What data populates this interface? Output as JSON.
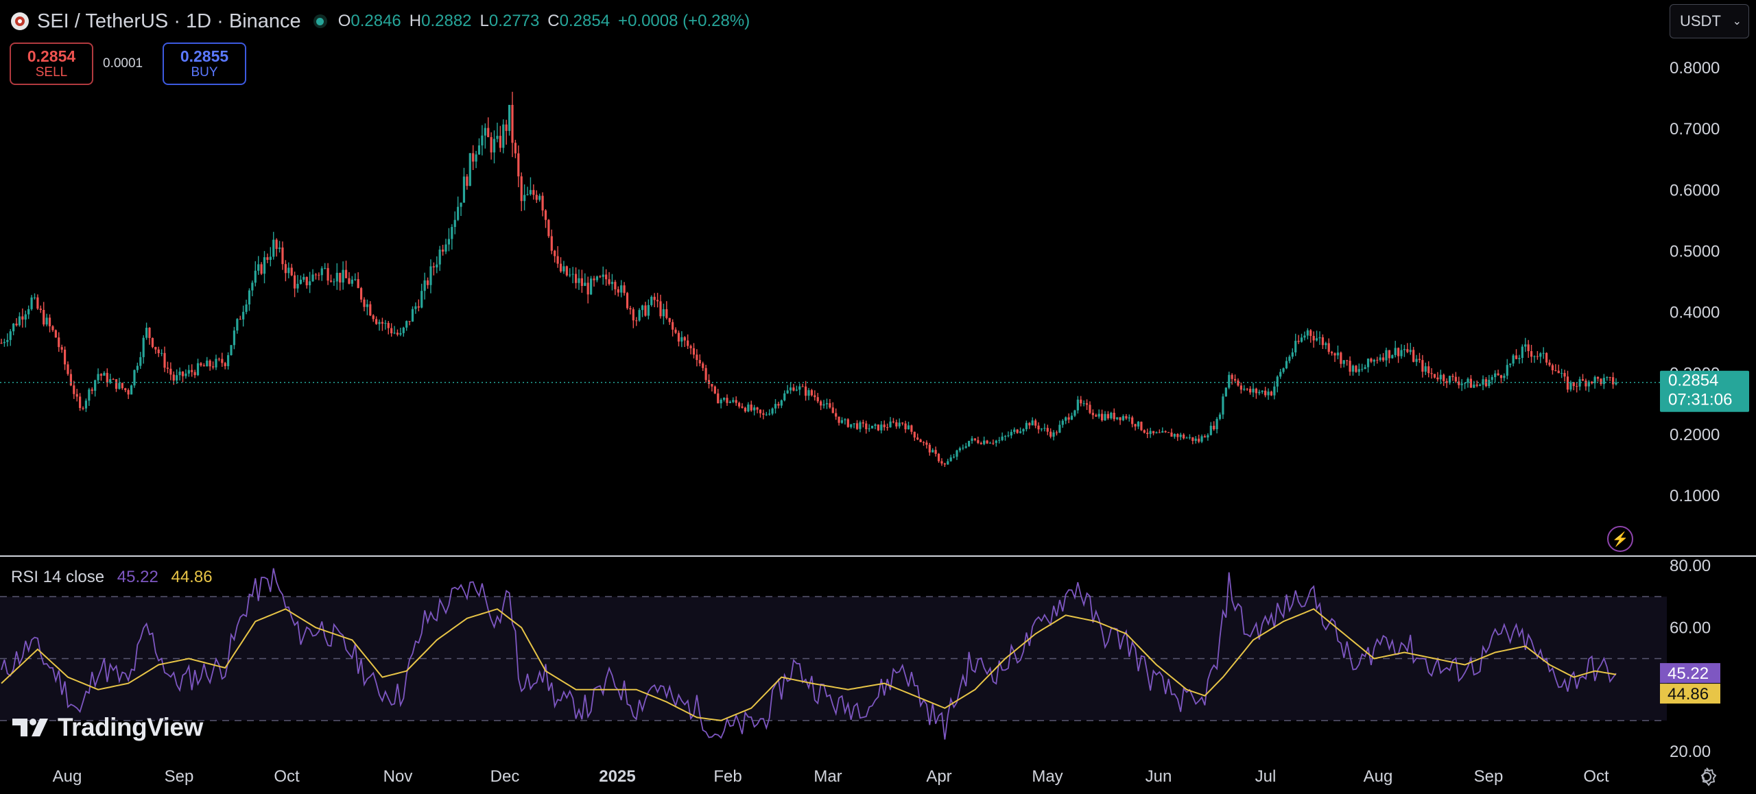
{
  "header": {
    "symbol_title": "SEI / TetherUS · 1D · Binance",
    "ohlc": {
      "o_label": "O",
      "o": "0.2846",
      "h_label": "H",
      "h": "0.2882",
      "l_label": "L",
      "l": "0.2773",
      "c_label": "C",
      "c": "0.2854"
    },
    "change": "+0.0008 (+0.28%)"
  },
  "trade": {
    "sell_price": "0.2854",
    "sell_label": "SELL",
    "spread": "0.0001",
    "buy_price": "0.2855",
    "buy_label": "BUY"
  },
  "currency_select": {
    "value": "USDT"
  },
  "price_badge": {
    "price": "0.2854",
    "countdown": "07:31:06"
  },
  "rsi": {
    "label": "RSI 14 close",
    "rsi_value": "45.22",
    "ma_value": "44.86"
  },
  "branding": {
    "logo_text": "TradingView"
  },
  "colors": {
    "up": "#26a69a",
    "down": "#ef5350",
    "rsi": "#7e57c2",
    "rsi_ma": "#e8c547",
    "background": "#000000"
  },
  "chart_data": [
    {
      "type": "candlestick",
      "title": "SEI / TetherUS · 1D · Binance",
      "ylim": [
        0.07,
        0.82
      ],
      "y_ticks": [
        "0.8000",
        "0.7000",
        "0.6000",
        "0.5000",
        "0.4000",
        "0.3000",
        "0.2000",
        "0.1000"
      ],
      "x_ticks": [
        "Aug",
        "Sep",
        "Oct",
        "Nov",
        "Dec",
        "2025",
        "Feb",
        "Mar",
        "Apr",
        "May",
        "Jun",
        "Jul",
        "Aug",
        "Sep",
        "Oct"
      ],
      "last_price": 0.2854,
      "close_series": [
        {
          "x": 0,
          "y": 0.35
        },
        {
          "x": 10,
          "y": 0.42
        },
        {
          "x": 18,
          "y": 0.36
        },
        {
          "x": 26,
          "y": 0.24
        },
        {
          "x": 32,
          "y": 0.3
        },
        {
          "x": 42,
          "y": 0.27
        },
        {
          "x": 48,
          "y": 0.37
        },
        {
          "x": 57,
          "y": 0.29
        },
        {
          "x": 66,
          "y": 0.31
        },
        {
          "x": 74,
          "y": 0.32
        },
        {
          "x": 82,
          "y": 0.44
        },
        {
          "x": 90,
          "y": 0.51
        },
        {
          "x": 98,
          "y": 0.44
        },
        {
          "x": 106,
          "y": 0.47
        },
        {
          "x": 116,
          "y": 0.45
        },
        {
          "x": 124,
          "y": 0.39
        },
        {
          "x": 132,
          "y": 0.36
        },
        {
          "x": 140,
          "y": 0.44
        },
        {
          "x": 150,
          "y": 0.56
        },
        {
          "x": 158,
          "y": 0.69
        },
        {
          "x": 164,
          "y": 0.67
        },
        {
          "x": 168,
          "y": 0.72
        },
        {
          "x": 172,
          "y": 0.58
        },
        {
          "x": 178,
          "y": 0.6
        },
        {
          "x": 184,
          "y": 0.47
        },
        {
          "x": 194,
          "y": 0.44
        },
        {
          "x": 202,
          "y": 0.46
        },
        {
          "x": 210,
          "y": 0.39
        },
        {
          "x": 216,
          "y": 0.42
        },
        {
          "x": 222,
          "y": 0.37
        },
        {
          "x": 230,
          "y": 0.33
        },
        {
          "x": 236,
          "y": 0.26
        },
        {
          "x": 244,
          "y": 0.25
        },
        {
          "x": 252,
          "y": 0.23
        },
        {
          "x": 262,
          "y": 0.28
        },
        {
          "x": 270,
          "y": 0.26
        },
        {
          "x": 278,
          "y": 0.22
        },
        {
          "x": 288,
          "y": 0.21
        },
        {
          "x": 298,
          "y": 0.22
        },
        {
          "x": 306,
          "y": 0.18
        },
        {
          "x": 312,
          "y": 0.15
        },
        {
          "x": 320,
          "y": 0.19
        },
        {
          "x": 330,
          "y": 0.19
        },
        {
          "x": 340,
          "y": 0.22
        },
        {
          "x": 348,
          "y": 0.2
        },
        {
          "x": 356,
          "y": 0.25
        },
        {
          "x": 364,
          "y": 0.23
        },
        {
          "x": 372,
          "y": 0.23
        },
        {
          "x": 380,
          "y": 0.2
        },
        {
          "x": 388,
          "y": 0.2
        },
        {
          "x": 396,
          "y": 0.19
        },
        {
          "x": 402,
          "y": 0.22
        },
        {
          "x": 406,
          "y": 0.3
        },
        {
          "x": 412,
          "y": 0.27
        },
        {
          "x": 420,
          "y": 0.27
        },
        {
          "x": 426,
          "y": 0.33
        },
        {
          "x": 432,
          "y": 0.37
        },
        {
          "x": 440,
          "y": 0.34
        },
        {
          "x": 448,
          "y": 0.3
        },
        {
          "x": 456,
          "y": 0.33
        },
        {
          "x": 464,
          "y": 0.34
        },
        {
          "x": 472,
          "y": 0.3
        },
        {
          "x": 480,
          "y": 0.29
        },
        {
          "x": 488,
          "y": 0.28
        },
        {
          "x": 496,
          "y": 0.3
        },
        {
          "x": 504,
          "y": 0.34
        },
        {
          "x": 512,
          "y": 0.32
        },
        {
          "x": 518,
          "y": 0.28
        },
        {
          "x": 526,
          "y": 0.29
        },
        {
          "x": 534,
          "y": 0.2854
        }
      ]
    },
    {
      "type": "line",
      "title": "RSI 14 close",
      "ylim": [
        20,
        80
      ],
      "y_ticks": [
        "80.00",
        "60.00",
        "20.00"
      ],
      "bands": [
        70,
        50,
        30
      ],
      "series": [
        {
          "name": "RSI",
          "points": [
            [
              0,
              45
            ],
            [
              10,
              55
            ],
            [
              18,
              45
            ],
            [
              26,
              32
            ],
            [
              32,
              48
            ],
            [
              42,
              42
            ],
            [
              48,
              60
            ],
            [
              57,
              42
            ],
            [
              66,
              45
            ],
            [
              74,
              48
            ],
            [
              82,
              70
            ],
            [
              90,
              76
            ],
            [
              98,
              58
            ],
            [
              106,
              60
            ],
            [
              116,
              52
            ],
            [
              124,
              40
            ],
            [
              132,
              38
            ],
            [
              140,
              62
            ],
            [
              150,
              70
            ],
            [
              158,
              74
            ],
            [
              164,
              62
            ],
            [
              168,
              72
            ],
            [
              172,
              38
            ],
            [
              178,
              48
            ],
            [
              184,
              36
            ],
            [
              194,
              34
            ],
            [
              202,
              44
            ],
            [
              210,
              34
            ],
            [
              216,
              42
            ],
            [
              222,
              36
            ],
            [
              230,
              34
            ],
            [
              236,
              26
            ],
            [
              244,
              28
            ],
            [
              252,
              30
            ],
            [
              262,
              48
            ],
            [
              270,
              40
            ],
            [
              278,
              34
            ],
            [
              288,
              36
            ],
            [
              298,
              48
            ],
            [
              306,
              34
            ],
            [
              312,
              28
            ],
            [
              320,
              48
            ],
            [
              330,
              46
            ],
            [
              340,
              56
            ],
            [
              348,
              66
            ],
            [
              356,
              74
            ],
            [
              364,
              58
            ],
            [
              372,
              56
            ],
            [
              380,
              44
            ],
            [
              388,
              38
            ],
            [
              396,
              34
            ],
            [
              402,
              48
            ],
            [
              406,
              74
            ],
            [
              412,
              58
            ],
            [
              420,
              62
            ],
            [
              426,
              68
            ],
            [
              432,
              72
            ],
            [
              440,
              60
            ],
            [
              448,
              46
            ],
            [
              456,
              56
            ],
            [
              464,
              55
            ],
            [
              472,
              48
            ],
            [
              480,
              46
            ],
            [
              488,
              48
            ],
            [
              496,
              58
            ],
            [
              504,
              56
            ],
            [
              512,
              46
            ],
            [
              518,
              42
            ],
            [
              526,
              47
            ],
            [
              534,
              45.22
            ]
          ]
        },
        {
          "name": "RSI MA",
          "points": [
            [
              0,
              42
            ],
            [
              12,
              53
            ],
            [
              22,
              44
            ],
            [
              32,
              40
            ],
            [
              42,
              42
            ],
            [
              52,
              48
            ],
            [
              62,
              50
            ],
            [
              74,
              47
            ],
            [
              84,
              62
            ],
            [
              94,
              66
            ],
            [
              104,
              60
            ],
            [
              116,
              56
            ],
            [
              126,
              44
            ],
            [
              134,
              46
            ],
            [
              144,
              56
            ],
            [
              154,
              63
            ],
            [
              164,
              66
            ],
            [
              172,
              60
            ],
            [
              180,
              46
            ],
            [
              190,
              40
            ],
            [
              200,
              40
            ],
            [
              210,
              40
            ],
            [
              220,
              36
            ],
            [
              230,
              31
            ],
            [
              238,
              30
            ],
            [
              248,
              34
            ],
            [
              258,
              44
            ],
            [
              268,
              42
            ],
            [
              280,
              40
            ],
            [
              292,
              42
            ],
            [
              302,
              38
            ],
            [
              312,
              34
            ],
            [
              322,
              40
            ],
            [
              332,
              50
            ],
            [
              342,
              58
            ],
            [
              352,
              64
            ],
            [
              362,
              62
            ],
            [
              372,
              58
            ],
            [
              382,
              48
            ],
            [
              392,
              40
            ],
            [
              398,
              38
            ],
            [
              404,
              44
            ],
            [
              414,
              56
            ],
            [
              424,
              62
            ],
            [
              434,
              66
            ],
            [
              444,
              58
            ],
            [
              454,
              50
            ],
            [
              464,
              52
            ],
            [
              474,
              50
            ],
            [
              484,
              48
            ],
            [
              494,
              52
            ],
            [
              504,
              54
            ],
            [
              512,
              48
            ],
            [
              520,
              44
            ],
            [
              527,
              46
            ],
            [
              534,
              44.86
            ]
          ]
        }
      ]
    }
  ]
}
